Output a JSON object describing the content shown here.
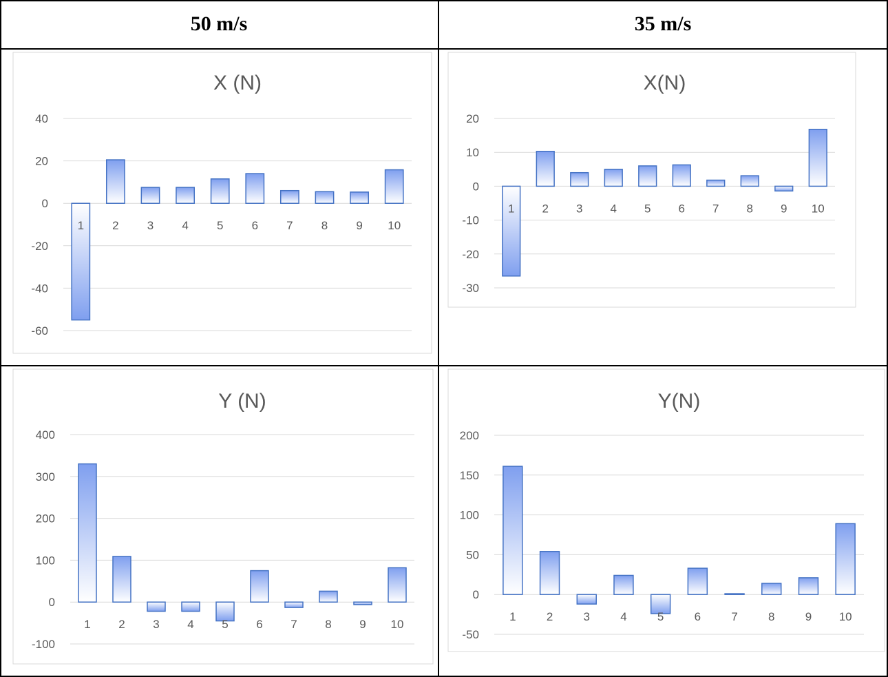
{
  "headers": {
    "left": "50 m/s",
    "right": "35 m/s"
  },
  "colors": {
    "bar_stroke": "#4472C4",
    "bar_fill_light": "#ffffff",
    "bar_fill_dark": "#7f9fef",
    "grid": "#d9d9d9",
    "text": "#595959"
  },
  "chart_data": [
    {
      "type": "bar",
      "title": "X (N)",
      "categories": [
        "1",
        "2",
        "3",
        "4",
        "5",
        "6",
        "7",
        "8",
        "9",
        "10"
      ],
      "values": [
        -55,
        20.5,
        7.5,
        7.5,
        11.5,
        14,
        6,
        5.5,
        5.3,
        15.8
      ],
      "ylim": [
        -60,
        40
      ],
      "yticks": [
        40,
        20,
        0,
        -20,
        -40,
        -60
      ],
      "grid": true
    },
    {
      "type": "bar",
      "title": "X(N)",
      "categories": [
        "1",
        "2",
        "3",
        "4",
        "5",
        "6",
        "7",
        "8",
        "9",
        "10"
      ],
      "values": [
        -26.5,
        10.3,
        4,
        5,
        6,
        6.3,
        1.8,
        3.1,
        -1.4,
        16.8
      ],
      "ylim": [
        -30,
        20
      ],
      "yticks": [
        20,
        10,
        0,
        -10,
        -20,
        -30
      ],
      "grid": true
    },
    {
      "type": "bar",
      "title": "Y (N)",
      "categories": [
        "1",
        "2",
        "3",
        "4",
        "5",
        "6",
        "7",
        "8",
        "9",
        "10"
      ],
      "values": [
        330,
        109,
        -22,
        -22,
        -45,
        75,
        -13,
        26,
        -6,
        82
      ],
      "ylim": [
        -100,
        400
      ],
      "yticks": [
        400,
        300,
        200,
        100,
        0,
        -100
      ],
      "grid": true
    },
    {
      "type": "bar",
      "title": "Y(N)",
      "categories": [
        "1",
        "2",
        "3",
        "4",
        "5",
        "6",
        "7",
        "8",
        "9",
        "10"
      ],
      "values": [
        161,
        54,
        -12,
        24,
        -24,
        33,
        1,
        14,
        21,
        89
      ],
      "ylim": [
        -50,
        200
      ],
      "yticks": [
        200,
        150,
        100,
        50,
        0,
        -50
      ],
      "grid": true
    }
  ]
}
